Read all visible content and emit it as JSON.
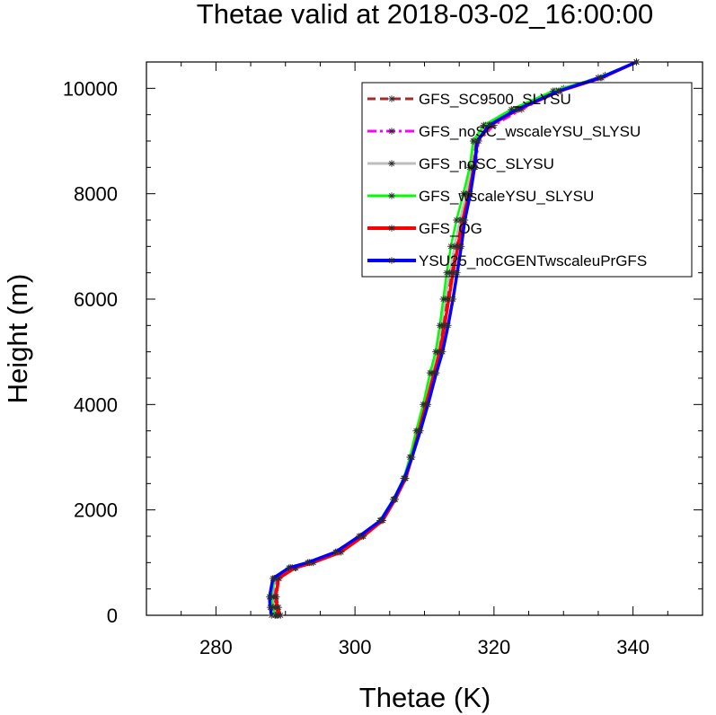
{
  "chart_data": {
    "type": "line",
    "title": "Thetae valid at 2018-03-02_16:00:00",
    "xlabel": "Thetae (K)",
    "ylabel": "Height (m)",
    "xlim": [
      270,
      350
    ],
    "ylim": [
      0,
      10500
    ],
    "xticks": [
      280,
      300,
      320,
      340
    ],
    "yticks": [
      0,
      2000,
      4000,
      6000,
      8000,
      10000
    ],
    "legend_position": "top-right",
    "grid": false,
    "series": [
      {
        "name": "GFS_SC9500_SLYSU",
        "color": "#a52a2a",
        "dash": "dash",
        "points": [
          [
            289.3,
            0
          ],
          [
            289.0,
            150
          ],
          [
            288.7,
            350
          ],
          [
            289.1,
            700
          ],
          [
            291.5,
            900
          ],
          [
            294.0,
            1000
          ],
          [
            298.0,
            1200
          ],
          [
            301.2,
            1500
          ],
          [
            304.0,
            1800
          ],
          [
            305.8,
            2200
          ],
          [
            307.3,
            2600
          ],
          [
            308.2,
            3000
          ],
          [
            309.2,
            3500
          ],
          [
            310.2,
            4000
          ],
          [
            311.2,
            4600
          ],
          [
            312.0,
            5000
          ],
          [
            312.6,
            5500
          ],
          [
            313.2,
            6000
          ],
          [
            313.8,
            6500
          ],
          [
            314.5,
            7000
          ],
          [
            315.3,
            7500
          ],
          [
            316.3,
            8000
          ],
          [
            317.0,
            8500
          ],
          [
            317.4,
            9000
          ],
          [
            319.0,
            9300
          ],
          [
            323.0,
            9600
          ],
          [
            329.0,
            9950
          ],
          [
            335.0,
            10200
          ],
          [
            340.5,
            10500
          ]
        ]
      },
      {
        "name": "GFS_noSC_wscaleYSU_SLYSU",
        "color": "#ff00ff",
        "dash": "dashdot",
        "points": [
          [
            288.8,
            0
          ],
          [
            288.5,
            150
          ],
          [
            288.3,
            350
          ],
          [
            288.7,
            700
          ],
          [
            291.0,
            900
          ],
          [
            293.7,
            1000
          ],
          [
            297.7,
            1200
          ],
          [
            301.0,
            1500
          ],
          [
            303.8,
            1800
          ],
          [
            305.7,
            2200
          ],
          [
            307.2,
            2600
          ],
          [
            308.1,
            3000
          ],
          [
            309.1,
            3500
          ],
          [
            310.1,
            4000
          ],
          [
            311.3,
            4600
          ],
          [
            312.2,
            5000
          ],
          [
            312.9,
            5500
          ],
          [
            313.5,
            6000
          ],
          [
            314.2,
            6500
          ],
          [
            314.9,
            7000
          ],
          [
            315.7,
            7500
          ],
          [
            316.6,
            8000
          ],
          [
            317.3,
            8500
          ],
          [
            317.8,
            9000
          ],
          [
            320.0,
            9300
          ],
          [
            324.0,
            9600
          ],
          [
            330.0,
            10000
          ],
          [
            336.0,
            10250
          ],
          [
            340.5,
            10500
          ]
        ]
      },
      {
        "name": "GFS_noSC_SLYSU",
        "color": "#bebebe",
        "dash": "solid",
        "points": [
          [
            288.6,
            0
          ],
          [
            288.3,
            150
          ],
          [
            288.1,
            350
          ],
          [
            288.5,
            700
          ],
          [
            290.8,
            900
          ],
          [
            293.5,
            1000
          ],
          [
            297.5,
            1200
          ],
          [
            300.9,
            1500
          ],
          [
            303.7,
            1800
          ],
          [
            305.6,
            2200
          ],
          [
            307.1,
            2600
          ],
          [
            308.0,
            3000
          ],
          [
            309.0,
            3500
          ],
          [
            310.0,
            4000
          ],
          [
            311.0,
            4600
          ],
          [
            311.8,
            5000
          ],
          [
            312.4,
            5500
          ],
          [
            313.0,
            6000
          ],
          [
            313.6,
            6500
          ],
          [
            314.3,
            7000
          ],
          [
            315.1,
            7500
          ],
          [
            316.0,
            8000
          ],
          [
            316.7,
            8500
          ],
          [
            317.1,
            9000
          ],
          [
            318.8,
            9300
          ],
          [
            322.8,
            9600
          ],
          [
            328.8,
            9950
          ],
          [
            335.0,
            10200
          ],
          [
            340.5,
            10500
          ]
        ]
      },
      {
        "name": "GFS_wscaleYSU_SLYSU",
        "color": "#00ff00",
        "dash": "solid",
        "points": [
          [
            288.5,
            0
          ],
          [
            288.2,
            150
          ],
          [
            288.0,
            350
          ],
          [
            288.4,
            700
          ],
          [
            290.7,
            900
          ],
          [
            293.4,
            1000
          ],
          [
            297.4,
            1200
          ],
          [
            300.8,
            1500
          ],
          [
            303.6,
            1800
          ],
          [
            305.5,
            2200
          ],
          [
            307.0,
            2600
          ],
          [
            307.9,
            3000
          ],
          [
            308.8,
            3500
          ],
          [
            309.8,
            4000
          ],
          [
            310.8,
            4600
          ],
          [
            311.6,
            5000
          ],
          [
            312.2,
            5500
          ],
          [
            312.7,
            6000
          ],
          [
            313.2,
            6500
          ],
          [
            313.8,
            7000
          ],
          [
            314.6,
            7500
          ],
          [
            315.6,
            8000
          ],
          [
            316.5,
            8500
          ],
          [
            317.0,
            9000
          ],
          [
            318.5,
            9300
          ],
          [
            322.5,
            9600
          ],
          [
            328.5,
            9950
          ],
          [
            335.0,
            10200
          ],
          [
            340.5,
            10500
          ]
        ]
      },
      {
        "name": "GFS_OG",
        "color": "#ff0000",
        "dash": "solid",
        "points": [
          [
            289.0,
            0
          ],
          [
            288.8,
            150
          ],
          [
            288.6,
            350
          ],
          [
            289.0,
            700
          ],
          [
            291.4,
            900
          ],
          [
            294.0,
            1000
          ],
          [
            298.0,
            1200
          ],
          [
            301.2,
            1500
          ],
          [
            304.0,
            1800
          ],
          [
            305.8,
            2200
          ],
          [
            307.3,
            2600
          ],
          [
            308.2,
            3000
          ],
          [
            309.2,
            3500
          ],
          [
            310.2,
            4000
          ],
          [
            311.4,
            4600
          ],
          [
            312.2,
            5000
          ],
          [
            312.9,
            5500
          ],
          [
            313.5,
            6000
          ],
          [
            314.1,
            6500
          ],
          [
            314.8,
            7000
          ],
          [
            315.5,
            7500
          ],
          [
            316.4,
            8000
          ],
          [
            317.1,
            8500
          ],
          [
            317.6,
            9000
          ],
          [
            319.5,
            9300
          ],
          [
            323.5,
            9600
          ],
          [
            329.5,
            9950
          ],
          [
            335.5,
            10200
          ],
          [
            340.5,
            10500
          ]
        ]
      },
      {
        "name": "YSU25_noCGENTwscaleuPrGFS",
        "color": "#0000ff",
        "dash": "solid",
        "points": [
          [
            288.0,
            0
          ],
          [
            287.8,
            150
          ],
          [
            287.7,
            350
          ],
          [
            288.2,
            700
          ],
          [
            290.5,
            900
          ],
          [
            293.2,
            1000
          ],
          [
            297.2,
            1200
          ],
          [
            300.6,
            1500
          ],
          [
            303.7,
            1800
          ],
          [
            305.6,
            2200
          ],
          [
            307.1,
            2600
          ],
          [
            308.2,
            3000
          ],
          [
            309.4,
            3500
          ],
          [
            310.5,
            4000
          ],
          [
            311.7,
            4600
          ],
          [
            312.6,
            5000
          ],
          [
            313.4,
            5500
          ],
          [
            314.1,
            6000
          ],
          [
            314.7,
            6500
          ],
          [
            315.3,
            7000
          ],
          [
            315.8,
            7500
          ],
          [
            316.6,
            8000
          ],
          [
            317.2,
            8500
          ],
          [
            317.6,
            9000
          ],
          [
            319.3,
            9300
          ],
          [
            323.3,
            9600
          ],
          [
            329.3,
            9950
          ],
          [
            335.3,
            10200
          ],
          [
            340.5,
            10500
          ]
        ]
      }
    ]
  }
}
